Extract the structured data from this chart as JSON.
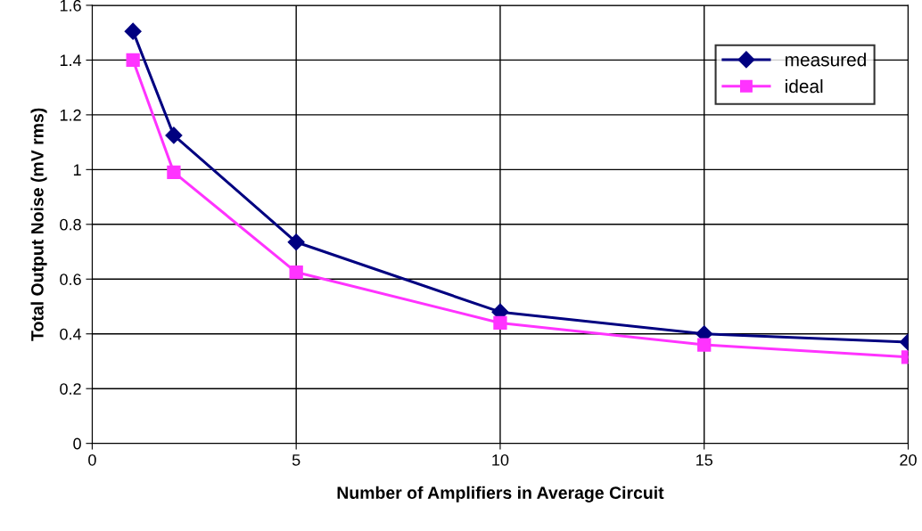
{
  "chart_data": {
    "type": "line",
    "xlabel": "Number of Amplifiers in Average Circuit",
    "ylabel": "Total Output Noise (mV rms)",
    "x": [
      1,
      2,
      5,
      10,
      15,
      20
    ],
    "series": [
      {
        "name": "measured",
        "color": "#000080",
        "marker": "diamond",
        "values": [
          1.505,
          1.125,
          0.735,
          0.48,
          0.4,
          0.37
        ]
      },
      {
        "name": "ideal",
        "color": "#ff33ff",
        "marker": "square",
        "values": [
          1.4,
          0.99,
          0.625,
          0.44,
          0.36,
          0.315
        ]
      }
    ],
    "xlim": [
      0,
      20
    ],
    "xticks": [
      0,
      5,
      10,
      15,
      20
    ],
    "ylim": [
      0,
      1.6
    ],
    "yticks": [
      0,
      0.2,
      0.4,
      0.6,
      0.8,
      1,
      1.2,
      1.4,
      1.6
    ],
    "grid": true,
    "legend": "top right",
    "line_style": "solid"
  }
}
